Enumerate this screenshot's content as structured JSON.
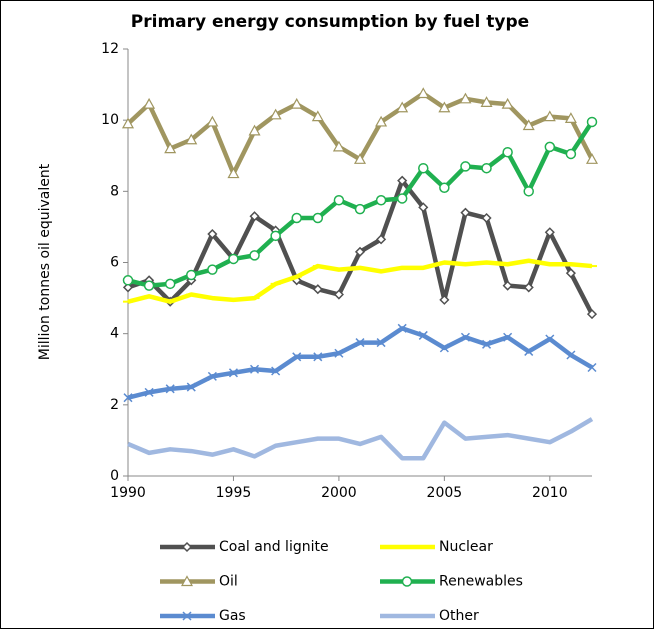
{
  "chart_data": {
    "type": "line",
    "title": "Primary energy consumption by fuel type",
    "y_label": "Million tonnes oil equivalent",
    "x": [
      1990,
      1991,
      1992,
      1993,
      1994,
      1995,
      1996,
      1997,
      1998,
      1999,
      2000,
      2001,
      2002,
      2003,
      2004,
      2005,
      2006,
      2007,
      2008,
      2009,
      2010,
      2011,
      2012
    ],
    "xlim": [
      1990,
      2012
    ],
    "xticks": [
      1990,
      1995,
      2000,
      2005,
      2010
    ],
    "ylim": [
      0,
      12
    ],
    "yticks": [
      0,
      2,
      4,
      6,
      8,
      10,
      12
    ],
    "grid": false,
    "legend": "bottom",
    "series": [
      {
        "name": "Coal and lignite",
        "color": "#505050",
        "marker": "diamond",
        "values": [
          5.3,
          5.5,
          4.9,
          5.5,
          6.8,
          6.1,
          7.3,
          6.9,
          5.5,
          5.25,
          5.1,
          6.3,
          6.65,
          8.3,
          7.55,
          4.95,
          7.4,
          7.25,
          5.35,
          5.3,
          6.85,
          5.7,
          4.55
        ]
      },
      {
        "name": "Nuclear",
        "color": "#ffff00",
        "marker": "dash",
        "values": [
          4.9,
          5.05,
          4.9,
          5.1,
          5.0,
          4.95,
          5.0,
          5.4,
          5.6,
          5.9,
          5.8,
          5.85,
          5.75,
          5.85,
          5.85,
          6.0,
          5.95,
          6.0,
          5.95,
          6.05,
          5.95,
          5.95,
          5.9
        ]
      },
      {
        "name": "Oil",
        "color": "#a09660",
        "marker": "triangle",
        "values": [
          9.9,
          10.45,
          9.2,
          9.45,
          9.95,
          8.5,
          9.7,
          10.15,
          10.45,
          10.1,
          9.25,
          8.9,
          9.95,
          10.35,
          10.75,
          10.35,
          10.6,
          10.5,
          10.45,
          9.85,
          10.1,
          10.05,
          8.9
        ]
      },
      {
        "name": "Renewables",
        "color": "#20b050",
        "marker": "circle",
        "values": [
          5.5,
          5.35,
          5.4,
          5.65,
          5.8,
          6.1,
          6.2,
          6.75,
          7.25,
          7.25,
          7.75,
          7.5,
          7.75,
          7.8,
          8.65,
          8.1,
          8.7,
          8.65,
          9.1,
          8.0,
          9.25,
          9.05,
          9.95
        ]
      },
      {
        "name": "Gas",
        "color": "#5b8bd0",
        "marker": "x",
        "values": [
          2.2,
          2.35,
          2.45,
          2.5,
          2.8,
          2.9,
          3.0,
          2.95,
          3.35,
          3.35,
          3.45,
          3.75,
          3.75,
          4.15,
          3.95,
          3.6,
          3.9,
          3.7,
          3.9,
          3.5,
          3.85,
          3.4,
          3.05
        ]
      },
      {
        "name": "Other",
        "color": "#a0b8e0",
        "marker": "none",
        "values": [
          0.9,
          0.65,
          0.75,
          0.7,
          0.6,
          0.75,
          0.55,
          0.85,
          0.95,
          1.05,
          1.05,
          0.9,
          1.1,
          0.5,
          0.5,
          1.5,
          1.05,
          1.1,
          1.15,
          1.05,
          0.95,
          1.25,
          1.6
        ]
      }
    ]
  }
}
